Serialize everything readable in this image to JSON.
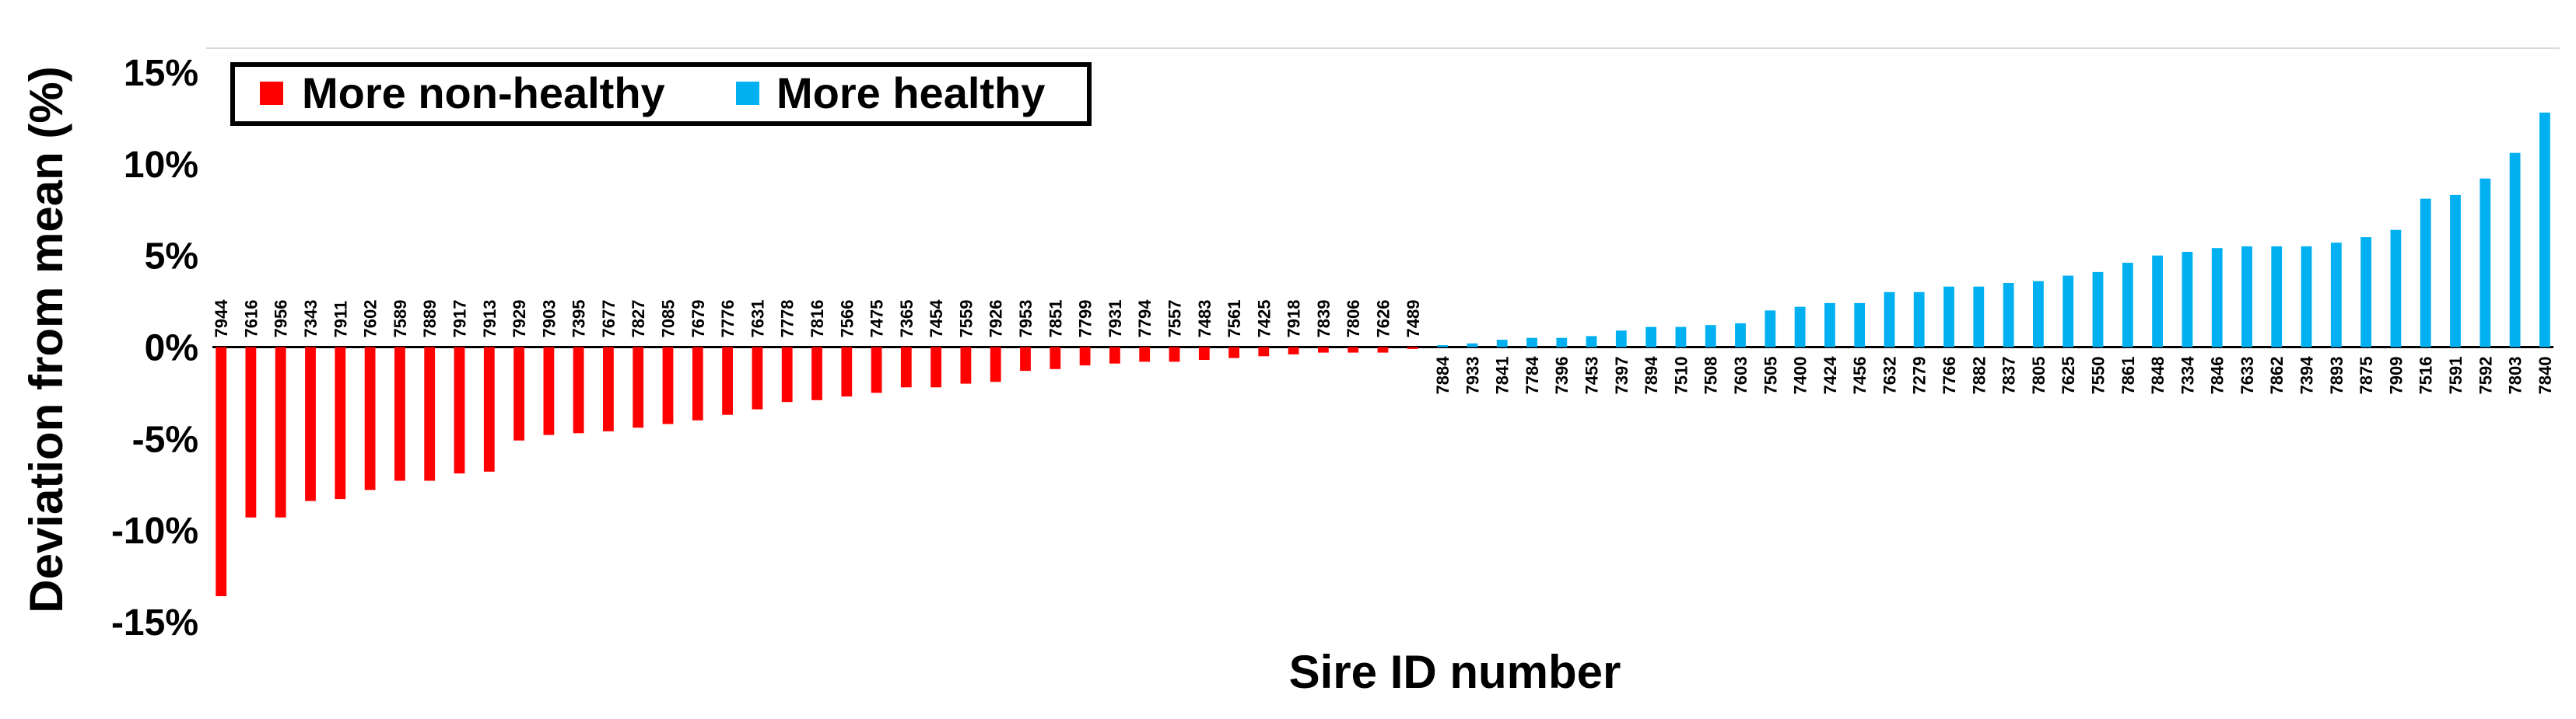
{
  "chart_data": {
    "type": "bar",
    "xlabel": "Sire ID number",
    "ylabel": "Deviation from mean (%)",
    "ylim": [
      -15,
      15
    ],
    "yticks": [
      15,
      10,
      5,
      0,
      -5,
      -10,
      -15
    ],
    "ytick_labels": [
      "15%",
      "10%",
      "5%",
      "0%",
      "-5%",
      "-10%",
      "-15%"
    ],
    "grid": false,
    "legend_position": "top-left",
    "series": [
      {
        "name": "More non-healthy",
        "color": "#ff0000"
      },
      {
        "name": "More healthy",
        "color": "#00b0f0"
      }
    ],
    "categories": [
      "7944",
      "7616",
      "7956",
      "7343",
      "7911",
      "7602",
      "7589",
      "7889",
      "7917",
      "7913",
      "7929",
      "7903",
      "7395",
      "7677",
      "7827",
      "7085",
      "7679",
      "7776",
      "7631",
      "7778",
      "7816",
      "7566",
      "7475",
      "7365",
      "7454",
      "7559",
      "7926",
      "7953",
      "7851",
      "7799",
      "7931",
      "7794",
      "7557",
      "7483",
      "7561",
      "7425",
      "7918",
      "7839",
      "7806",
      "7626",
      "7489",
      "7884",
      "7933",
      "7841",
      "7784",
      "7396",
      "7453",
      "7397",
      "7894",
      "7510",
      "7508",
      "7603",
      "7505",
      "7400",
      "7424",
      "7456",
      "7632",
      "7279",
      "7766",
      "7882",
      "7837",
      "7805",
      "7625",
      "7550",
      "7861",
      "7848",
      "7334",
      "7846",
      "7633",
      "7862",
      "7394",
      "7893",
      "7875",
      "7909",
      "7516",
      "7591",
      "7592",
      "7803",
      "7840"
    ],
    "values": [
      -13.6,
      -9.3,
      -9.3,
      -8.4,
      -8.3,
      -7.8,
      -7.3,
      -7.3,
      -6.9,
      -6.8,
      -5.1,
      -4.8,
      -4.7,
      -4.6,
      -4.4,
      -4.2,
      -4.0,
      -3.7,
      -3.4,
      -3.0,
      -2.9,
      -2.7,
      -2.5,
      -2.2,
      -2.2,
      -2.0,
      -1.9,
      -1.3,
      -1.2,
      -1.0,
      -0.9,
      -0.8,
      -0.8,
      -0.7,
      -0.6,
      -0.5,
      -0.4,
      -0.3,
      -0.3,
      -0.3,
      -0.1,
      0.1,
      0.2,
      0.4,
      0.5,
      0.5,
      0.6,
      0.9,
      1.1,
      1.1,
      1.2,
      1.3,
      2.0,
      2.2,
      2.4,
      2.4,
      3.0,
      3.0,
      3.3,
      3.3,
      3.5,
      3.6,
      3.9,
      4.1,
      4.6,
      5.0,
      5.2,
      5.4,
      5.5,
      5.5,
      5.5,
      5.7,
      6.0,
      6.4,
      8.1,
      8.3,
      9.2,
      10.6,
      12.8
    ]
  }
}
